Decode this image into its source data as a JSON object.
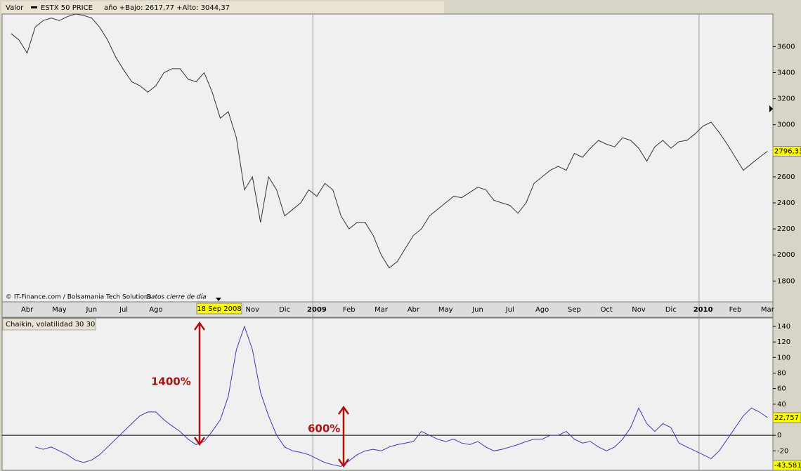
{
  "header": {
    "label": "Valor",
    "instrument": "ESTX 50 PRICE",
    "range": "año +Bajo: 2617,77 +Alto: 3044,37"
  },
  "footer": {
    "credit": "© IT-Finance.com / Bolsamania Tech Solutions",
    "note": "Datos cierre de día"
  },
  "cursor_label": "18 Sep 2008",
  "chart_data": [
    {
      "type": "line",
      "name": "ESTX 50 PRICE",
      "categories": [
        null,
        null,
        "Abr",
        null,
        null,
        null,
        "May",
        null,
        null,
        null,
        "Jun",
        null,
        null,
        null,
        "Jul",
        null,
        null,
        null,
        "Ago",
        null,
        null,
        null,
        null,
        null,
        null,
        null,
        null,
        null,
        null,
        null,
        "Nov",
        null,
        null,
        null,
        "Dic",
        null,
        null,
        null,
        "2009",
        null,
        null,
        null,
        "Feb",
        null,
        null,
        null,
        "Mar",
        null,
        null,
        null,
        "Abr",
        null,
        null,
        null,
        "May",
        null,
        null,
        null,
        "Jun",
        null,
        null,
        null,
        "Jul",
        null,
        null,
        null,
        "Ago",
        null,
        null,
        null,
        "Sep",
        null,
        null,
        null,
        "Oct",
        null,
        null,
        null,
        "Nov",
        null,
        null,
        null,
        "Dic",
        null,
        null,
        null,
        "2010",
        null,
        null,
        null,
        "Feb",
        null,
        null,
        null,
        "Mar"
      ],
      "values": [
        3700,
        3650,
        3550,
        3750,
        3800,
        3820,
        3800,
        3830,
        3850,
        3840,
        3820,
        3750,
        3650,
        3520,
        3420,
        3330,
        3300,
        3250,
        3300,
        3400,
        3430,
        3430,
        3350,
        3330,
        3400,
        3250,
        3050,
        3100,
        2900,
        2500,
        2600,
        2250,
        2600,
        2500,
        2300,
        2350,
        2400,
        2500,
        2450,
        2550,
        2500,
        2300,
        2200,
        2250,
        2250,
        2150,
        2000,
        1900,
        1950,
        2050,
        2150,
        2200,
        2300,
        2350,
        2400,
        2450,
        2440,
        2480,
        2520,
        2500,
        2420,
        2400,
        2380,
        2320,
        2400,
        2550,
        2600,
        2650,
        2680,
        2650,
        2780,
        2750,
        2820,
        2880,
        2850,
        2830,
        2900,
        2880,
        2820,
        2720,
        2830,
        2880,
        2820,
        2870,
        2880,
        2930,
        2990,
        3020,
        2940,
        2850,
        2750,
        2650,
        2700,
        2750,
        2796.33
      ],
      "value_labels": [
        null,
        null,
        null,
        null,
        null,
        null,
        null,
        null,
        null,
        null,
        null,
        null,
        null,
        null,
        null,
        null,
        null,
        null,
        null,
        null,
        null,
        null,
        null,
        null,
        null,
        null,
        null,
        null,
        null,
        null,
        null,
        null,
        null,
        null,
        null,
        null,
        null,
        null,
        null,
        null,
        null,
        null,
        null,
        null,
        null,
        null,
        null,
        null,
        null,
        null,
        null,
        null,
        null,
        null,
        null,
        null,
        null,
        null,
        null,
        null,
        null,
        null,
        null,
        null,
        null,
        null,
        null,
        null,
        null,
        null,
        null,
        null,
        null,
        null,
        null,
        null,
        null,
        null,
        null,
        null,
        null,
        null,
        null,
        null,
        null,
        null,
        null,
        null,
        null,
        null,
        null,
        null,
        null,
        null,
        "2796,33"
      ],
      "color": "#333333",
      "ylim": [
        1640,
        3850
      ],
      "yticks": [
        1800,
        2000,
        2200,
        2400,
        2600,
        2800,
        3000,
        3200,
        3400,
        3600
      ]
    },
    {
      "type": "line",
      "title": "Chaikin, volatilidad 30 30",
      "values": [
        null,
        null,
        null,
        -15,
        -18,
        -15,
        -20,
        -25,
        -32,
        -35,
        -32,
        -25,
        -15,
        -5,
        5,
        15,
        25,
        30,
        30,
        20,
        12,
        5,
        -5,
        -12,
        -8,
        5,
        20,
        50,
        110,
        140,
        110,
        55,
        25,
        0,
        -15,
        -20,
        -22,
        -25,
        -30,
        -35,
        -38,
        -40,
        -33,
        -25,
        -20,
        -18,
        -20,
        -15,
        -12,
        -10,
        -8,
        5,
        0,
        -5,
        -8,
        -5,
        -10,
        -12,
        -8,
        -15,
        -20,
        -18,
        -15,
        -12,
        -8,
        -5,
        -5,
        0,
        0,
        5,
        -5,
        -10,
        -8,
        -15,
        -20,
        -15,
        -5,
        10,
        35,
        15,
        5,
        15,
        10,
        -10,
        -15,
        -20,
        -25,
        -30,
        -20,
        -5,
        10,
        25,
        35,
        30,
        22.757
      ],
      "value_labels": [
        null,
        null,
        null,
        null,
        null,
        null,
        null,
        null,
        null,
        null,
        null,
        null,
        null,
        null,
        null,
        null,
        null,
        null,
        null,
        null,
        null,
        null,
        null,
        null,
        null,
        null,
        null,
        null,
        null,
        null,
        null,
        null,
        null,
        null,
        null,
        null,
        null,
        null,
        null,
        null,
        null,
        null,
        null,
        null,
        null,
        null,
        null,
        null,
        null,
        null,
        null,
        null,
        null,
        null,
        null,
        null,
        null,
        null,
        null,
        null,
        null,
        null,
        null,
        null,
        null,
        null,
        null,
        null,
        null,
        null,
        null,
        null,
        null,
        null,
        null,
        null,
        null,
        null,
        null,
        null,
        null,
        null,
        null,
        null,
        null,
        null,
        null,
        null,
        null,
        null,
        null,
        null,
        null,
        null,
        "22,757"
      ],
      "marker": {
        "value": -43.581,
        "label": "-43,581"
      },
      "color": "#3b3bb5",
      "ylim": [
        -45,
        149
      ],
      "yticks": [
        -20,
        0,
        20,
        40,
        60,
        80,
        100,
        120,
        140
      ],
      "annotations": [
        "1400%",
        "600%"
      ]
    }
  ]
}
